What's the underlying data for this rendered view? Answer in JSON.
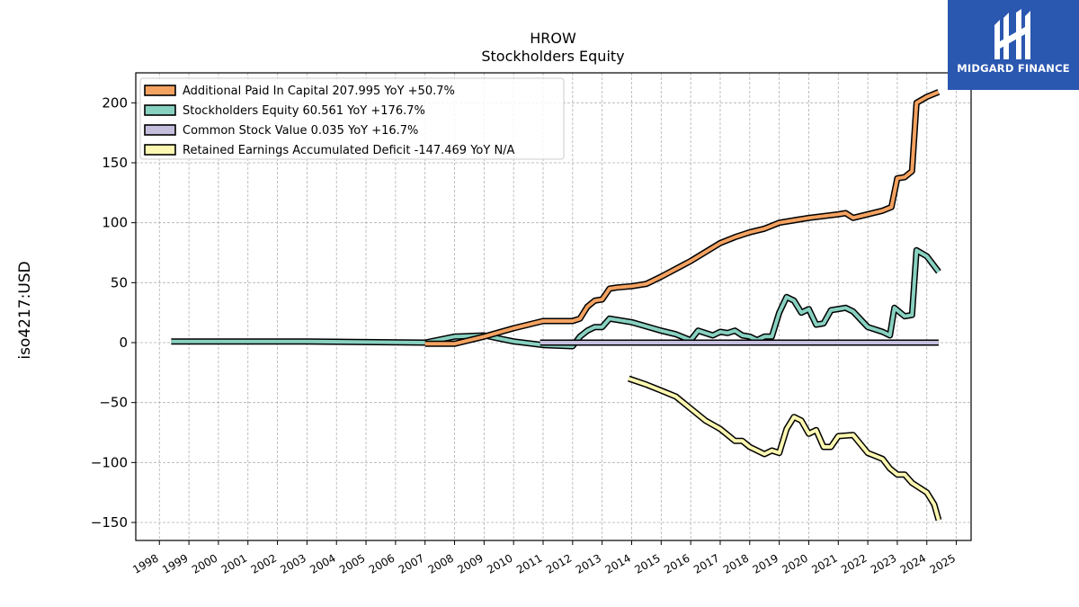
{
  "header": {
    "title": "HROW",
    "subtitle": "Stockholders  Equity"
  },
  "logo": {
    "text": "MIDGARD FINANCE",
    "color": "#2a57b0"
  },
  "chart_data": {
    "type": "line",
    "title": "HROW",
    "subtitle": "Stockholders  Equity",
    "xlabel": "",
    "ylabel": "iso4217:USD",
    "xlim": [
      1997.2,
      2025.5
    ],
    "ylim": [
      -165,
      225
    ],
    "xticks": [
      1998,
      1999,
      2000,
      2001,
      2002,
      2003,
      2004,
      2005,
      2006,
      2007,
      2008,
      2009,
      2010,
      2011,
      2012,
      2013,
      2014,
      2015,
      2016,
      2017,
      2018,
      2019,
      2020,
      2021,
      2022,
      2023,
      2024,
      2025
    ],
    "yticks": [
      -150,
      -100,
      -50,
      0,
      50,
      100,
      150,
      200
    ],
    "grid": true,
    "legend_position": "top-left",
    "series": [
      {
        "name": "Additional Paid In Capital",
        "legend": "Additional Paid In Capital  207.995 YoY +50.7%",
        "color": "#f4a261",
        "points": [
          [
            2007.0,
            -1
          ],
          [
            2008.0,
            -1
          ],
          [
            2009.0,
            5
          ],
          [
            2010.0,
            12
          ],
          [
            2010.5,
            15
          ],
          [
            2011.0,
            18
          ],
          [
            2012.0,
            18
          ],
          [
            2012.25,
            20
          ],
          [
            2012.5,
            30
          ],
          [
            2012.75,
            35
          ],
          [
            2013.0,
            36
          ],
          [
            2013.25,
            45
          ],
          [
            2013.5,
            46
          ],
          [
            2014.0,
            47
          ],
          [
            2014.5,
            49
          ],
          [
            2015.0,
            55
          ],
          [
            2016.0,
            68
          ],
          [
            2017.0,
            83
          ],
          [
            2017.5,
            88
          ],
          [
            2018.0,
            92
          ],
          [
            2018.5,
            95
          ],
          [
            2019.0,
            100
          ],
          [
            2019.5,
            102
          ],
          [
            2020.0,
            104
          ],
          [
            2021.0,
            107
          ],
          [
            2021.25,
            108
          ],
          [
            2021.5,
            104
          ],
          [
            2022.0,
            107
          ],
          [
            2022.5,
            110
          ],
          [
            2022.8,
            113
          ],
          [
            2023.0,
            137
          ],
          [
            2023.25,
            138
          ],
          [
            2023.5,
            143
          ],
          [
            2023.65,
            200
          ],
          [
            2024.0,
            205
          ],
          [
            2024.4,
            209
          ]
        ]
      },
      {
        "name": "Stockholders Equity",
        "legend": "Stockholders Equity  60.561 YoY +176.7%",
        "color": "#88d1c1",
        "points": [
          [
            1998.4,
            1
          ],
          [
            2003.0,
            1
          ],
          [
            2007.0,
            0
          ],
          [
            2008.0,
            5
          ],
          [
            2009.0,
            6
          ],
          [
            2010.0,
            1
          ],
          [
            2011.0,
            -2
          ],
          [
            2012.0,
            -3
          ],
          [
            2012.25,
            5
          ],
          [
            2012.5,
            10
          ],
          [
            2012.75,
            13
          ],
          [
            2013.0,
            13
          ],
          [
            2013.25,
            20
          ],
          [
            2014.0,
            17
          ],
          [
            2015.0,
            10
          ],
          [
            2015.5,
            7
          ],
          [
            2016.0,
            2
          ],
          [
            2016.25,
            10
          ],
          [
            2016.75,
            6
          ],
          [
            2017.0,
            9
          ],
          [
            2017.25,
            8
          ],
          [
            2017.5,
            10
          ],
          [
            2017.75,
            6
          ],
          [
            2018.0,
            5
          ],
          [
            2018.25,
            2
          ],
          [
            2018.5,
            5
          ],
          [
            2018.75,
            5
          ],
          [
            2019.0,
            25
          ],
          [
            2019.25,
            38
          ],
          [
            2019.5,
            35
          ],
          [
            2019.75,
            25
          ],
          [
            2020.0,
            28
          ],
          [
            2020.25,
            15
          ],
          [
            2020.5,
            16
          ],
          [
            2020.75,
            27
          ],
          [
            2021.25,
            29
          ],
          [
            2021.5,
            26
          ],
          [
            2022.0,
            13
          ],
          [
            2022.5,
            9
          ],
          [
            2022.75,
            6
          ],
          [
            2022.9,
            29
          ],
          [
            2023.25,
            22
          ],
          [
            2023.5,
            23
          ],
          [
            2023.65,
            77
          ],
          [
            2024.0,
            72
          ],
          [
            2024.4,
            59
          ]
        ]
      },
      {
        "name": "Common Stock Value",
        "legend": "Common Stock Value  0.035 YoY +16.7%",
        "color": "#c5bedc",
        "points": [
          [
            2010.9,
            0
          ],
          [
            2024.4,
            0
          ]
        ]
      },
      {
        "name": "Retained Earnings Accumulated Deficit",
        "legend": "Retained Earnings Accumulated Deficit  -147.469 YoY N/A",
        "color": "#fdf8b1",
        "points": [
          [
            2013.9,
            -30
          ],
          [
            2014.5,
            -35
          ],
          [
            2015.0,
            -40
          ],
          [
            2015.5,
            -45
          ],
          [
            2016.0,
            -55
          ],
          [
            2016.5,
            -65
          ],
          [
            2017.0,
            -72
          ],
          [
            2017.5,
            -82
          ],
          [
            2017.75,
            -82
          ],
          [
            2018.0,
            -87
          ],
          [
            2018.25,
            -90
          ],
          [
            2018.5,
            -93
          ],
          [
            2018.75,
            -90
          ],
          [
            2019.0,
            -92
          ],
          [
            2019.25,
            -72
          ],
          [
            2019.5,
            -62
          ],
          [
            2019.75,
            -65
          ],
          [
            2020.0,
            -76
          ],
          [
            2020.25,
            -73
          ],
          [
            2020.5,
            -87
          ],
          [
            2020.75,
            -87
          ],
          [
            2021.0,
            -78
          ],
          [
            2021.5,
            -77
          ],
          [
            2022.0,
            -92
          ],
          [
            2022.5,
            -97
          ],
          [
            2022.75,
            -105
          ],
          [
            2023.0,
            -110
          ],
          [
            2023.25,
            -110
          ],
          [
            2023.5,
            -117
          ],
          [
            2024.0,
            -125
          ],
          [
            2024.25,
            -135
          ],
          [
            2024.4,
            -148
          ]
        ]
      }
    ]
  }
}
